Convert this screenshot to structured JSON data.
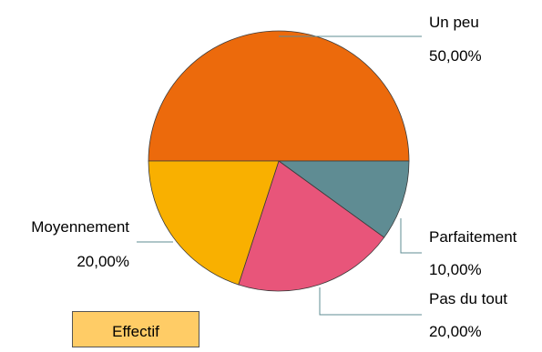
{
  "chart_data": {
    "type": "pie",
    "categories": [
      "Un peu",
      "Parfaitement",
      "Pas du tout",
      "Moyennement"
    ],
    "values": [
      50,
      10,
      20,
      20
    ],
    "value_labels": [
      "50,00%",
      "10,00%",
      "20,00%",
      "20,00%"
    ],
    "colors": [
      "#ec6a0c",
      "#5f8c93",
      "#e8557a",
      "#f9b000"
    ],
    "legend": {
      "title": "Effectif",
      "color": "#ffcc66"
    }
  }
}
